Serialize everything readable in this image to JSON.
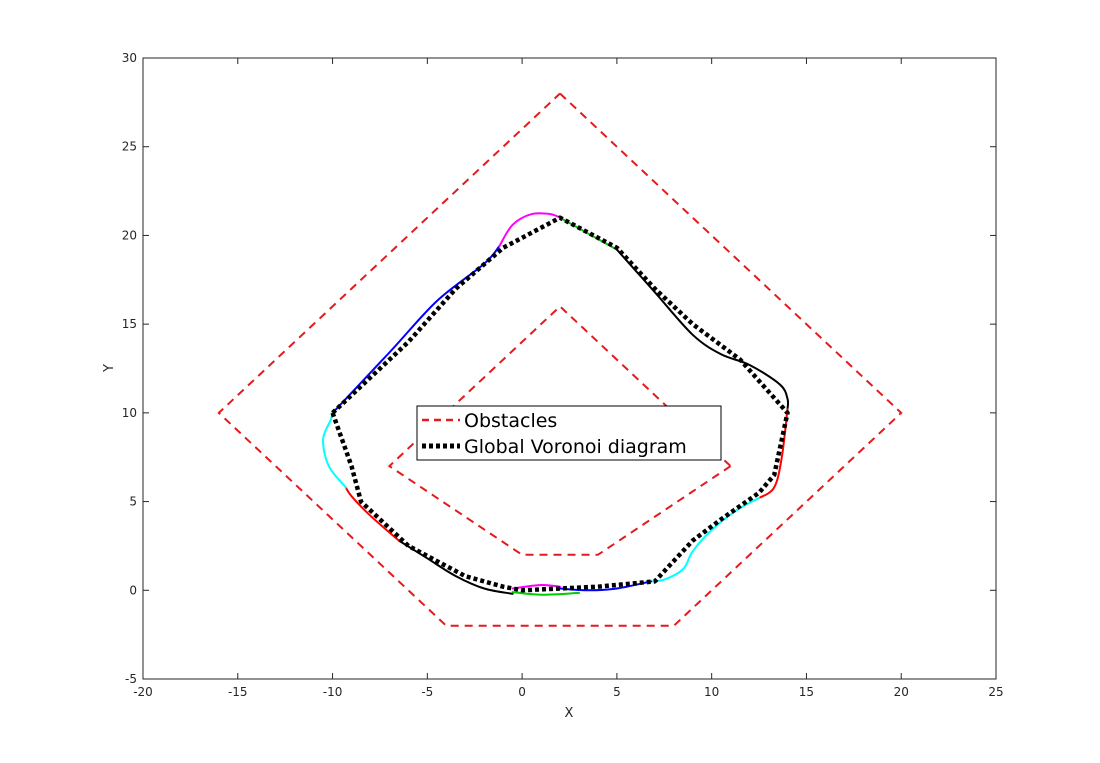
{
  "chart_data": {
    "type": "line",
    "xlabel": "X",
    "ylabel": "Y",
    "xlim": [
      -20,
      25
    ],
    "ylim": [
      -5,
      30
    ],
    "xticks": [
      -20,
      -15,
      -10,
      -5,
      0,
      5,
      10,
      15,
      20,
      25
    ],
    "yticks": [
      -5,
      0,
      5,
      10,
      15,
      20,
      25,
      30
    ],
    "grid": false,
    "legend": {
      "location": "center",
      "entries": [
        {
          "label": "Obstacles",
          "color": "#e41a1c",
          "style": "dashed"
        },
        {
          "label": "Global Voronoi diagram",
          "color": "#000000",
          "style": "dotted"
        }
      ]
    },
    "obstacles": [
      {
        "color": "#e41a1c",
        "x": [
          2,
          20,
          8,
          -4,
          -16,
          2
        ],
        "y": [
          28,
          10,
          -2,
          -2,
          10,
          28
        ]
      },
      {
        "color": "#e41a1c",
        "x": [
          11,
          4,
          0,
          -7,
          2,
          11
        ],
        "y": [
          7,
          2,
          2,
          7,
          16,
          7
        ]
      }
    ],
    "voronoi": {
      "color": "#000000",
      "x": [
        -10,
        -6,
        -3.5,
        -1,
        2,
        5,
        7,
        9,
        11.5,
        14,
        13.3,
        12.5,
        10.5,
        9,
        7,
        4,
        0,
        -1,
        -3,
        -6,
        -8.5,
        -9,
        -10
      ],
      "y": [
        10,
        14,
        17,
        19.3,
        21,
        19.3,
        17,
        15,
        13,
        10,
        6.5,
        5.5,
        4,
        2.8,
        0.5,
        0.2,
        0,
        0.2,
        0.8,
        2.5,
        5,
        7,
        10
      ]
    },
    "trajectories": [
      {
        "color": "#0000ff",
        "x": [
          -10,
          -7,
          -4.5,
          -2,
          -1.2
        ],
        "y": [
          10,
          13.4,
          16.3,
          18.4,
          19.4
        ]
      },
      {
        "color": "#ff00ff",
        "x": [
          -1.2,
          -0.5,
          0.5,
          1.5,
          2
        ],
        "y": [
          19.4,
          20.6,
          21.2,
          21.2,
          21
        ]
      },
      {
        "color": "#00cc00",
        "x": [
          2,
          3.5,
          5
        ],
        "y": [
          21,
          20.1,
          19.2
        ]
      },
      {
        "color": "#000000",
        "x": [
          5,
          7,
          9,
          10.5,
          12,
          13.6,
          14,
          14
        ],
        "y": [
          19.2,
          16.8,
          14.4,
          13.3,
          12.7,
          11.6,
          10.8,
          10.2
        ]
      },
      {
        "color": "#ff0000",
        "x": [
          14,
          13.7,
          13.3,
          12.5
        ],
        "y": [
          10.2,
          7.5,
          5.8,
          5.2
        ]
      },
      {
        "color": "#00ffff",
        "x": [
          12.5,
          11.3,
          10,
          9,
          8.5,
          7.5,
          6.8
        ],
        "y": [
          5.2,
          4.5,
          3.4,
          2.2,
          1.2,
          0.6,
          0.5
        ]
      },
      {
        "color": "#0000ff",
        "x": [
          6.8,
          5,
          3.5,
          2
        ],
        "y": [
          0.5,
          0.1,
          0,
          0.1
        ]
      },
      {
        "color": "#ff00ff",
        "x": [
          2,
          1,
          -0.5
        ],
        "y": [
          0.2,
          0.3,
          0.1
        ]
      },
      {
        "color": "#00cc00",
        "x": [
          -0.5,
          1,
          3
        ],
        "y": [
          -0.1,
          -0.25,
          -0.15
        ]
      },
      {
        "color": "#000000",
        "x": [
          -0.5,
          -2,
          -3.5,
          -5,
          -6.5
        ],
        "y": [
          -0.2,
          0.1,
          0.8,
          1.8,
          2.8
        ]
      },
      {
        "color": "#ff0000",
        "x": [
          -6.5,
          -8,
          -9,
          -9.3
        ],
        "y": [
          2.8,
          4.2,
          5.3,
          5.8
        ]
      },
      {
        "color": "#00ffff",
        "x": [
          -9.3,
          -10.2,
          -10.5,
          -10.1,
          -10
        ],
        "y": [
          5.8,
          7,
          8.5,
          9.6,
          10
        ]
      }
    ]
  }
}
